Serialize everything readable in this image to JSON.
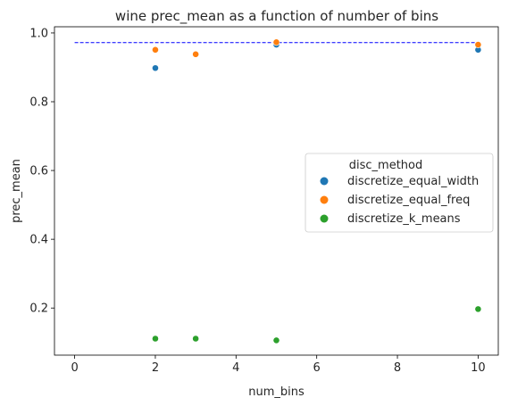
{
  "chart_data": {
    "type": "scatter",
    "title": "wine prec_mean as a function of number of bins",
    "xlabel": "num_bins",
    "ylabel": "prec_mean",
    "xlim": [
      -0.5,
      10.5
    ],
    "ylim": [
      0.063,
      1.018
    ],
    "xticks": [
      0,
      2,
      4,
      6,
      8,
      10
    ],
    "yticks": [
      0.2,
      0.4,
      0.6,
      0.8,
      1.0
    ],
    "ytick_labels": [
      "0.2",
      "0.4",
      "0.6",
      "0.8",
      "1.0"
    ],
    "grid": false,
    "legend": {
      "title": "disc_method",
      "placement": "center-right"
    },
    "reference_line": {
      "y": 0.972,
      "x_range": [
        0,
        10
      ],
      "style": "dashed",
      "color": "#0000ff"
    },
    "series": [
      {
        "name": "discretize_equal_width",
        "color": "#1f77b4",
        "x": [
          2,
          3,
          5,
          10
        ],
        "y": [
          0.898,
          0.938,
          0.966,
          0.951
        ]
      },
      {
        "name": "discretize_equal_freq",
        "color": "#ff7f0e",
        "x": [
          2,
          3,
          5,
          10
        ],
        "y": [
          0.951,
          0.938,
          0.973,
          0.966
        ]
      },
      {
        "name": "discretize_k_means",
        "color": "#2ca02c",
        "x": [
          2,
          3,
          5,
          10
        ],
        "y": [
          0.111,
          0.111,
          0.106,
          0.197
        ]
      }
    ]
  }
}
